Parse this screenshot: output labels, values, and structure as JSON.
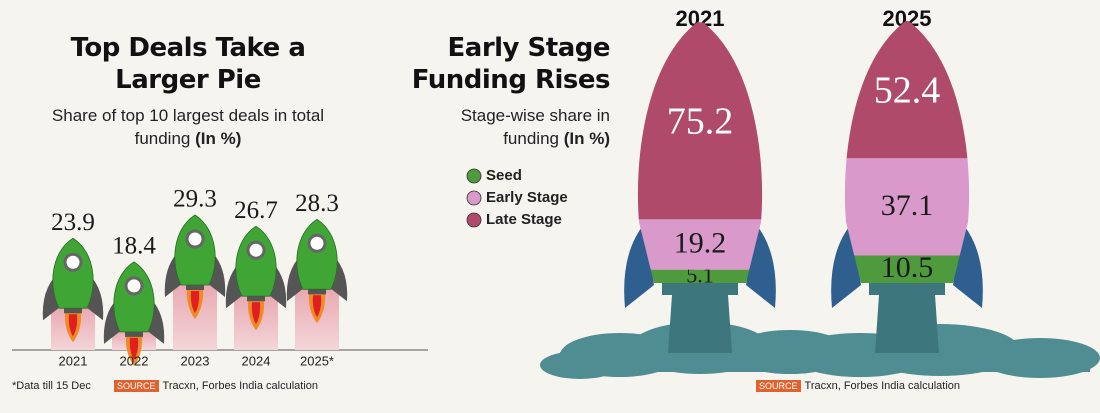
{
  "chart_data": [
    {
      "type": "rocket-bar",
      "title": "Top Deals Take a Larger Pie",
      "subtitle": "Share of top 10 largest deals in total funding",
      "subtitle_unit": "(In %)",
      "categories": [
        "2021",
        "2022",
        "2023",
        "2024",
        "2025*"
      ],
      "values": [
        23.9,
        18.4,
        29.3,
        26.7,
        28.3
      ],
      "color": "#3fa535",
      "footnote": "*Data till 15 Dec",
      "source_label": "SOURCE",
      "source": "Tracxn, Forbes India calculation"
    },
    {
      "type": "rocket-stack",
      "title": "Early Stage Funding Rises",
      "subtitle": "Stage-wise share in funding",
      "subtitle_unit": "(In %)",
      "categories": [
        "2021",
        "2025"
      ],
      "series": [
        {
          "name": "Seed",
          "color": "#4e9a3c",
          "values": [
            5.1,
            10.5
          ]
        },
        {
          "name": "Early Stage",
          "color": "#d99acb",
          "values": [
            19.2,
            37.1
          ]
        },
        {
          "name": "Late Stage",
          "color": "#b04a6b",
          "values": [
            75.2,
            52.4
          ]
        }
      ],
      "source_label": "SOURCE",
      "source": "Tracxn, Forbes India calculation"
    }
  ]
}
